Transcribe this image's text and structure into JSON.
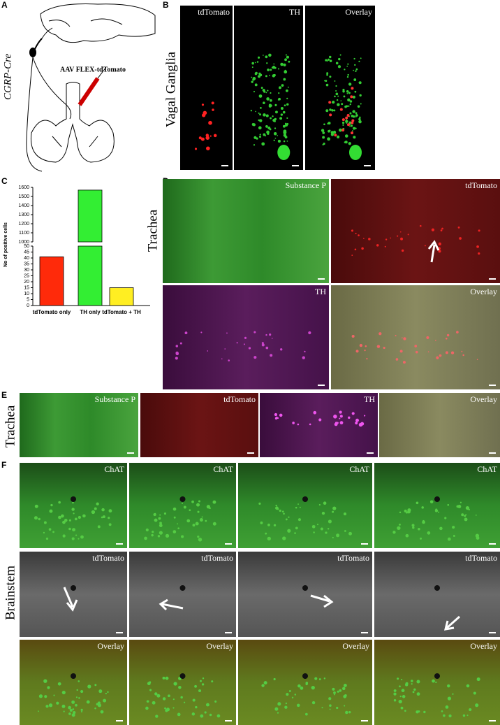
{
  "panel_letters": [
    "A",
    "B",
    "C",
    "D",
    "E",
    "F"
  ],
  "panels": {
    "A": {
      "mouse_line": "CGRP-Cre",
      "injection": "AAV FLEX-tdTomato"
    },
    "B": {
      "row_label": "Vagal Ganglia",
      "channels": [
        "tdTomato",
        "TH",
        "Overlay"
      ]
    },
    "D": {
      "row_label": "Trachea",
      "channels": [
        "Substance P",
        "tdTomato",
        "TH",
        "Overlay"
      ]
    },
    "E": {
      "row_label": "Trachea",
      "channels": [
        "Substance P",
        "tdTomato",
        "TH",
        "Overlay"
      ]
    },
    "F": {
      "row_label": "Brainstem",
      "channels": [
        "ChAT",
        "tdTomato",
        "Overlay"
      ]
    }
  },
  "chart_data": {
    "type": "bar",
    "y_label": "No of positive cells",
    "categories": [
      "tdTomato only",
      "TH only",
      "tdTomato + TH"
    ],
    "values": [
      41,
      1570,
      15
    ],
    "colors": [
      "#ff2a0a",
      "#33ee33",
      "#ffee22"
    ],
    "segments": [
      {
        "ylim": [
          0,
          50
        ],
        "yticks": [
          0,
          5,
          10,
          15,
          20,
          25,
          30,
          35,
          40,
          45,
          50
        ]
      },
      {
        "ylim": [
          1000,
          1600
        ],
        "yticks": [
          1000,
          1100,
          1200,
          1300,
          1400,
          1500,
          1600
        ]
      }
    ]
  }
}
